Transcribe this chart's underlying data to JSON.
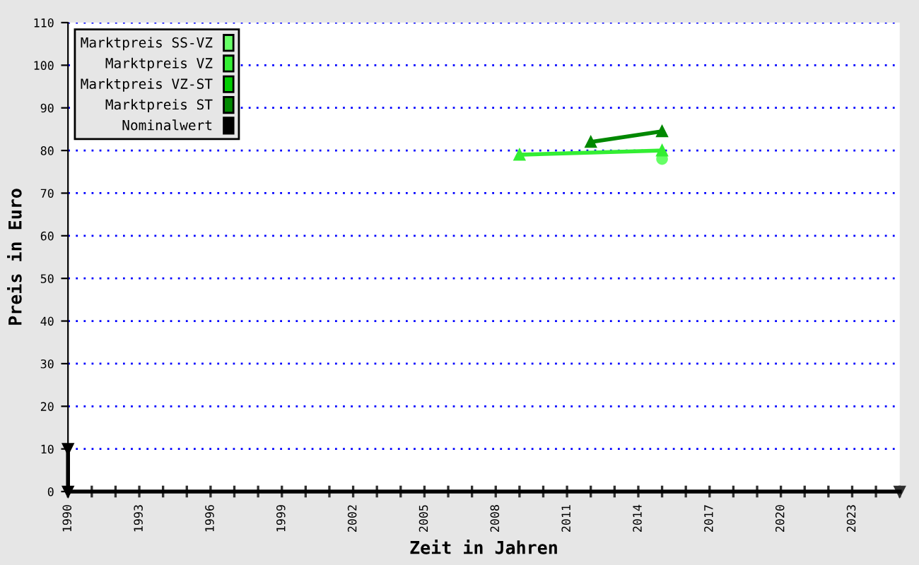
{
  "chart_data": {
    "type": "line",
    "xlabel": "Zeit in Jahren",
    "ylabel": "Preis in Euro",
    "xlim": [
      1990,
      2025
    ],
    "xticks": [
      1990,
      1993,
      1996,
      1999,
      2002,
      2005,
      2008,
      2011,
      2014,
      2017,
      2020,
      2023
    ],
    "ylim": [
      0,
      110
    ],
    "yticks": [
      0,
      10,
      20,
      30,
      40,
      50,
      60,
      70,
      80,
      90,
      100,
      110
    ],
    "grid": "y",
    "legend": "top left",
    "series": [
      {
        "name": "Marktpreis SS-VZ",
        "color": "#66ff66",
        "marker": "circle",
        "x": [
          2015
        ],
        "values": [
          78
        ]
      },
      {
        "name": "Marktpreis VZ",
        "color": "#33ee33",
        "marker": "triangle",
        "x": [
          2009,
          2015
        ],
        "values": [
          79,
          80
        ]
      },
      {
        "name": "Marktpreis VZ-ST",
        "color": "#00cc00"
      },
      {
        "name": "Marktpreis ST",
        "color": "#008800",
        "marker": "triangle",
        "x": [
          2012,
          2015
        ],
        "values": [
          82,
          84.5
        ]
      },
      {
        "name": "Nominalwert",
        "color": "#000000",
        "marker": "triangle_down",
        "x": [
          1990,
          1990
        ],
        "values": [
          10,
          0
        ]
      }
    ]
  }
}
